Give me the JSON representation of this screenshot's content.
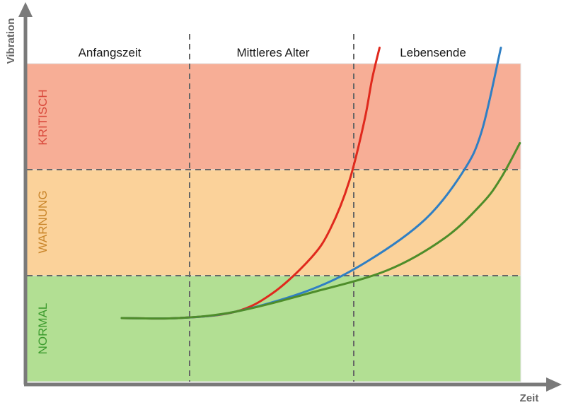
{
  "chart_data": {
    "type": "line",
    "title": "",
    "xlabel": "Zeit",
    "ylabel": "Vibration",
    "phases": [
      "Anfangszeit",
      "Mittleres Alter",
      "Lebensende"
    ],
    "zones": [
      {
        "label": "KRITISCH",
        "fill": "#f7ae96",
        "text_color": "#d94a3c"
      },
      {
        "label": "WARNUNG",
        "fill": "#fbd29a",
        "text_color": "#c9852a"
      },
      {
        "label": "NORMAL",
        "fill": "#b2df93",
        "text_color": "#3a9a2c"
      }
    ],
    "series": [
      {
        "color": "#e0291d",
        "x": [
          0.0,
          0.15,
          0.3,
          0.4,
          0.5,
          0.55,
          0.6,
          0.64,
          0.66,
          0.68
        ],
        "y": [
          0.2,
          0.2,
          0.22,
          0.28,
          0.39,
          0.48,
          0.63,
          0.82,
          0.95,
          1.05
        ]
      },
      {
        "color": "#2f7fc4",
        "x": [
          0.0,
          0.15,
          0.3,
          0.5,
          0.65,
          0.8,
          0.9,
          0.95,
          1.0
        ],
        "y": [
          0.2,
          0.2,
          0.22,
          0.29,
          0.38,
          0.51,
          0.66,
          0.79,
          1.05
        ]
      },
      {
        "color": "#4e8d2a",
        "x": [
          0.0,
          0.15,
          0.3,
          0.5,
          0.7,
          0.85,
          0.95,
          1.0,
          1.05
        ],
        "y": [
          0.2,
          0.2,
          0.22,
          0.28,
          0.35,
          0.45,
          0.56,
          0.64,
          0.75
        ]
      }
    ],
    "grid": true
  }
}
